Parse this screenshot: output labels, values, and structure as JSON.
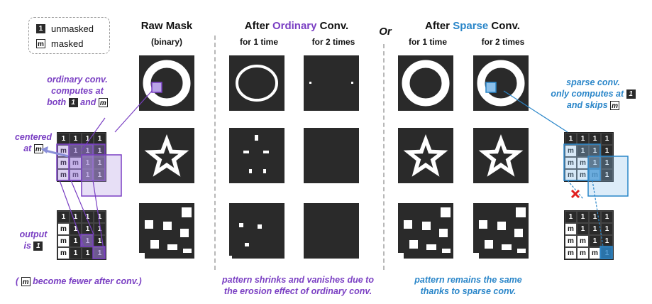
{
  "legend": {
    "unmasked_chip": "1",
    "unmasked_label": "unmasked",
    "masked_chip": "m",
    "masked_label": "masked"
  },
  "headers": {
    "raw_mask": "Raw Mask",
    "raw_mask_sub": "(binary)",
    "after_ordinary_prefix": "After",
    "after_ordinary_highlight": "Ordinary",
    "after_ordinary_suffix": "Conv.",
    "or": "Or",
    "after_sparse_prefix": "After",
    "after_sparse_highlight": "Sparse",
    "after_sparse_suffix": "Conv.",
    "for_1_time": "for 1 time",
    "for_2_times": "for 2 times"
  },
  "left_notes": {
    "ordinary_line1": "ordinary conv.",
    "ordinary_line2": "computes at",
    "ordinary_line3_pre": "both",
    "ordinary_and": "and",
    "centered_line1": "centered",
    "centered_line2": "at",
    "output_line1": "output",
    "output_line2": "is",
    "fewer_pre": "(",
    "fewer_post": "become fewer after conv.)"
  },
  "right_notes": {
    "sparse_line1": "sparse conv.",
    "sparse_line2": "only computes at",
    "sparse_line3": "and skips"
  },
  "bottom_notes": {
    "ordinary_line1": "pattern shrinks and vanishes due to",
    "ordinary_line2": "the erosion effect of ordinary conv.",
    "sparse_line1": "pattern remains the same",
    "sparse_line2": "thanks to sparse conv."
  },
  "chips": {
    "one": "1",
    "m": "m"
  },
  "grids": {
    "left_top": [
      [
        "1",
        "1",
        "1",
        "1"
      ],
      [
        "m",
        "1",
        "1",
        "1"
      ],
      [
        "m",
        "m",
        "1",
        "1"
      ],
      [
        "m",
        "m",
        "1",
        "1"
      ]
    ],
    "left_bottom": [
      [
        "1",
        "1",
        "1",
        "1"
      ],
      [
        "m",
        "1",
        "1",
        "1"
      ],
      [
        "m",
        "1",
        "1",
        "1"
      ],
      [
        "m",
        "1",
        "1",
        "1"
      ]
    ],
    "right_top": [
      [
        "1",
        "1",
        "1",
        "1"
      ],
      [
        "m",
        "1",
        "1",
        "1"
      ],
      [
        "m",
        "m",
        "1",
        "1"
      ],
      [
        "m",
        "m",
        "m",
        "1"
      ]
    ],
    "right_bottom": [
      [
        "1",
        "1",
        "1",
        "1"
      ],
      [
        "m",
        "1",
        "1",
        "1"
      ],
      [
        "m",
        "m",
        "1",
        "1"
      ],
      [
        "m",
        "m",
        "m",
        "1"
      ]
    ]
  },
  "colors": {
    "purple": "#7a3fc3",
    "blue": "#2a86c9",
    "dark": "#2a2a2a",
    "red": "#e02020"
  },
  "icons": {
    "cross": "red-x-icon",
    "arrow": "arrow-icon"
  }
}
